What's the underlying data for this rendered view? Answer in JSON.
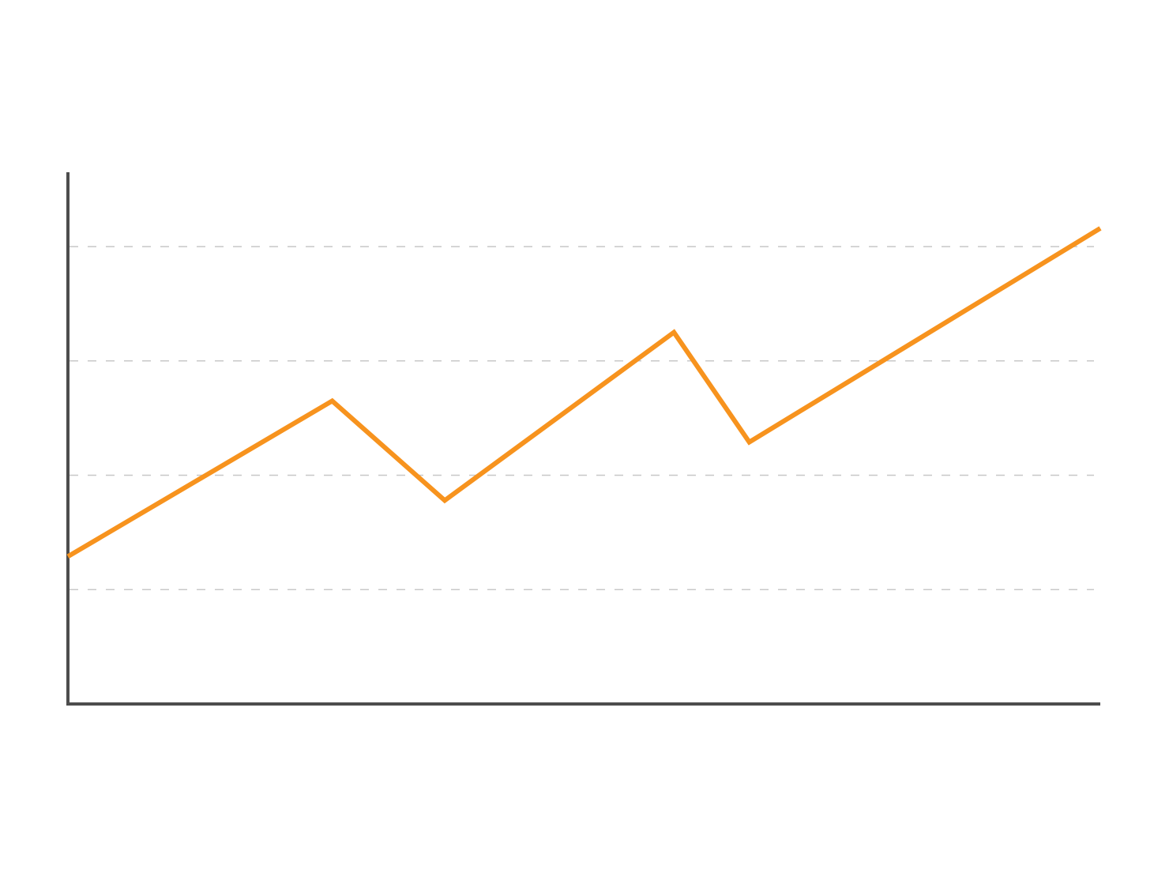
{
  "chart_data": {
    "type": "line",
    "x": [
      0,
      25.6,
      36.5,
      58.7,
      66.0,
      100
    ],
    "series": [
      {
        "color": "#f7931e",
        "values": [
          1.29,
          2.65,
          1.78,
          3.25,
          2.29,
          4.16
        ]
      }
    ],
    "xlim": [
      0,
      100
    ],
    "ylim": [
      0,
      4.65
    ],
    "yticks": [
      1,
      2,
      3,
      4
    ],
    "grid": true
  }
}
